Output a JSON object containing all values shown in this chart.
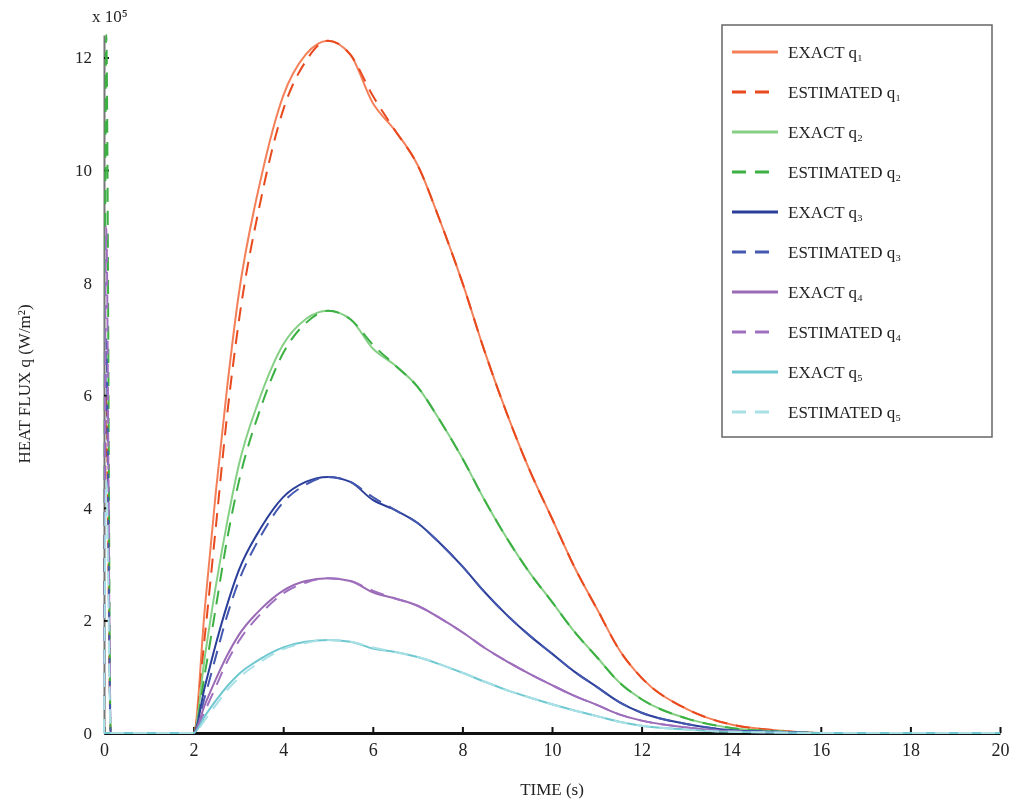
{
  "chart_data": {
    "type": "line",
    "xlabel": "TIME (s)",
    "ylabel": "HEAT FLUX q (W/m²)",
    "annotations": [
      "x 10⁵"
    ],
    "xlim": [
      0,
      20
    ],
    "xticks": [
      0,
      2,
      4,
      6,
      8,
      10,
      12,
      14,
      16,
      18,
      20
    ],
    "ylim": [
      0,
      12.4
    ],
    "yticks": [
      0,
      2,
      4,
      6,
      8,
      10,
      12
    ],
    "legend": "top right",
    "grid": false,
    "series": [
      {
        "name": "EXACT q₁",
        "color": "#f4805a",
        "line_style": "solid",
        "x": [
          0,
          2,
          2.25,
          2.5,
          2.75,
          3,
          3.5,
          4,
          4.5,
          5,
          5.5,
          6,
          6.5,
          7,
          7.5,
          8,
          8.5,
          9,
          9.5,
          10,
          10.5,
          11,
          11.5,
          12,
          13,
          14,
          15,
          16,
          20
        ],
        "values": [
          0,
          0,
          2.21,
          4.31,
          6.15,
          7.75,
          9.84,
          11.32,
          12.05,
          12.3,
          12.05,
          11.19,
          10.7,
          10.09,
          9.1,
          8.0,
          6.77,
          5.66,
          4.67,
          3.81,
          2.95,
          2.21,
          1.48,
          0.98,
          0.43,
          0.15,
          0.05,
          0,
          0
        ]
      },
      {
        "name": "ESTIMATED q₁",
        "color": "#e8491d",
        "line_style": "dashed",
        "x": [
          0,
          0.05,
          0.15,
          0.3,
          2,
          2.25,
          2.5,
          2.75,
          3,
          3.5,
          4,
          4.5,
          5,
          5.5,
          6,
          6.5,
          7,
          7.5,
          8,
          8.5,
          9,
          9.5,
          10,
          10.5,
          11,
          11.5,
          12,
          13,
          14,
          15,
          16,
          20
        ],
        "values": [
          0,
          6,
          0,
          0,
          0,
          1.72,
          3.69,
          5.66,
          7.26,
          9.47,
          11.07,
          11.93,
          12.3,
          12.05,
          11.32,
          10.7,
          10.09,
          9.1,
          8.0,
          6.77,
          5.66,
          4.67,
          3.81,
          2.95,
          2.21,
          1.48,
          0.98,
          0.43,
          0.15,
          0.05,
          0,
          0
        ]
      },
      {
        "name": "EXACT q₂",
        "color": "#86d086",
        "line_style": "solid",
        "x": [
          0,
          2,
          2.25,
          2.5,
          2.75,
          3,
          3.5,
          4,
          4.5,
          5,
          5.5,
          6,
          6.5,
          7,
          7.5,
          8,
          8.5,
          9,
          9.5,
          10,
          10.5,
          11,
          11.5,
          12,
          13,
          14,
          15,
          16,
          20
        ],
        "values": [
          0,
          0,
          1.35,
          2.63,
          3.75,
          4.73,
          6.0,
          6.9,
          7.35,
          7.5,
          7.35,
          6.83,
          6.53,
          6.15,
          5.55,
          4.88,
          4.13,
          3.45,
          2.85,
          2.33,
          1.8,
          1.35,
          0.9,
          0.6,
          0.26,
          0.09,
          0.03,
          0,
          0
        ]
      },
      {
        "name": "ESTIMATED q₂",
        "color": "#3cb043",
        "line_style": "dashed",
        "x": [
          0,
          0.05,
          0.15,
          0.3,
          2,
          2.25,
          2.5,
          2.75,
          3,
          3.5,
          4,
          4.5,
          5,
          5.5,
          6,
          6.5,
          7,
          7.5,
          8,
          8.5,
          9,
          9.5,
          10,
          10.5,
          11,
          11.5,
          12,
          13,
          14,
          15,
          16,
          20
        ],
        "values": [
          0,
          12.4,
          0,
          0,
          0,
          1.05,
          2.25,
          3.45,
          4.43,
          5.78,
          6.75,
          7.28,
          7.5,
          7.35,
          6.9,
          6.53,
          6.15,
          5.55,
          4.88,
          4.13,
          3.45,
          2.85,
          2.33,
          1.8,
          1.35,
          0.9,
          0.6,
          0.26,
          0.09,
          0.03,
          0,
          0
        ]
      },
      {
        "name": "EXACT q₃",
        "color": "#2b3f9a",
        "line_style": "solid",
        "x": [
          0,
          2,
          2.25,
          2.5,
          2.75,
          3,
          3.5,
          4,
          4.5,
          5,
          5.5,
          6,
          6.5,
          7,
          7.5,
          8,
          8.5,
          9,
          9.5,
          10,
          10.5,
          11,
          11.5,
          12,
          13,
          14,
          15,
          16,
          20
        ],
        "values": [
          0,
          0,
          0.82,
          1.59,
          2.28,
          2.87,
          3.64,
          4.19,
          4.46,
          4.55,
          4.46,
          4.14,
          3.96,
          3.73,
          3.37,
          2.96,
          2.5,
          2.09,
          1.73,
          1.41,
          1.09,
          0.82,
          0.55,
          0.36,
          0.16,
          0.05,
          0.02,
          0,
          0
        ]
      },
      {
        "name": "ESTIMATED q₃",
        "color": "#4558b0",
        "line_style": "dashed",
        "x": [
          0,
          0.05,
          0.15,
          0.3,
          2,
          2.25,
          2.5,
          2.75,
          3,
          3.5,
          4,
          4.5,
          5,
          5.5,
          6,
          6.5,
          7,
          7.5,
          8,
          8.5,
          9,
          9.5,
          10,
          10.5,
          11,
          11.5,
          12,
          13,
          14,
          15,
          16,
          20
        ],
        "values": [
          0,
          7,
          0,
          0,
          0,
          0.64,
          1.37,
          2.09,
          2.68,
          3.5,
          4.1,
          4.41,
          4.55,
          4.46,
          4.19,
          3.96,
          3.73,
          3.37,
          2.96,
          2.5,
          2.09,
          1.73,
          1.41,
          1.09,
          0.82,
          0.55,
          0.36,
          0.16,
          0.05,
          0.02,
          0,
          0
        ]
      },
      {
        "name": "EXACT q₄",
        "color": "#9a6ab5",
        "line_style": "solid",
        "x": [
          0,
          2,
          2.25,
          2.5,
          2.75,
          3,
          3.5,
          4,
          4.5,
          5,
          5.5,
          6,
          6.5,
          7,
          7.5,
          8,
          8.5,
          9,
          9.5,
          10,
          10.5,
          11,
          11.5,
          12,
          13,
          14,
          15,
          16,
          20
        ],
        "values": [
          0,
          0,
          0.5,
          0.96,
          1.38,
          1.73,
          2.2,
          2.53,
          2.7,
          2.75,
          2.7,
          2.5,
          2.39,
          2.26,
          2.04,
          1.79,
          1.51,
          1.27,
          1.05,
          0.85,
          0.66,
          0.5,
          0.33,
          0.22,
          0.1,
          0.03,
          0.01,
          0,
          0
        ]
      },
      {
        "name": "ESTIMATED q₄",
        "color": "#a070c0",
        "line_style": "dashed",
        "x": [
          0,
          0.05,
          0.15,
          0.3,
          2,
          2.25,
          2.5,
          2.75,
          3,
          3.5,
          4,
          4.5,
          5,
          5.5,
          6,
          6.5,
          7,
          7.5,
          8,
          8.5,
          9,
          9.5,
          10,
          10.5,
          11,
          11.5,
          12,
          13,
          14,
          15
        ],
        "values": [
          0,
          9,
          0,
          0,
          0,
          0.39,
          0.83,
          1.27,
          1.62,
          2.12,
          2.48,
          2.67,
          2.75,
          2.7,
          2.53,
          2.39,
          2.26,
          2.04,
          1.79,
          1.51,
          1.27,
          1.05,
          0.85,
          0.66,
          0.5,
          0.33,
          0.22,
          0.1,
          0.03,
          0.01
        ]
      },
      {
        "name": "EXACT q₅",
        "color": "#6fc8d0",
        "line_style": "solid",
        "x": [
          0,
          2,
          2.25,
          2.5,
          2.75,
          3,
          3.5,
          4,
          4.5,
          5,
          5.5,
          6,
          6.5,
          7,
          7.5,
          8,
          8.5,
          9,
          9.5,
          10,
          10.5,
          11,
          11.5,
          12,
          13,
          14,
          15,
          16,
          20
        ],
        "values": [
          0,
          0,
          0.3,
          0.58,
          0.83,
          1.04,
          1.32,
          1.52,
          1.62,
          1.65,
          1.62,
          1.5,
          1.44,
          1.35,
          1.22,
          1.07,
          0.91,
          0.76,
          0.63,
          0.51,
          0.4,
          0.3,
          0.2,
          0.13,
          0.06,
          0.02,
          0.01,
          0,
          0
        ]
      },
      {
        "name": "ESTIMATED q₅",
        "color": "#a8e0e6",
        "line_style": "dashed",
        "x": [
          0,
          0.05,
          0.15,
          0.3,
          2,
          2.25,
          2.5,
          2.75,
          3,
          3.5,
          4,
          4.5,
          5,
          5.5,
          6,
          6.5,
          7,
          7.5,
          8,
          8.5,
          9,
          9.5,
          10,
          10.5,
          11,
          11.5,
          12,
          13,
          14,
          15,
          16,
          20
        ],
        "values": [
          0,
          4.5,
          0,
          0,
          0,
          0.23,
          0.5,
          0.76,
          0.97,
          1.27,
          1.49,
          1.6,
          1.65,
          1.62,
          1.52,
          1.44,
          1.35,
          1.22,
          1.07,
          0.91,
          0.76,
          0.63,
          0.51,
          0.4,
          0.3,
          0.2,
          0.13,
          0.06,
          0.02,
          0.01,
          0,
          0
        ]
      }
    ]
  }
}
